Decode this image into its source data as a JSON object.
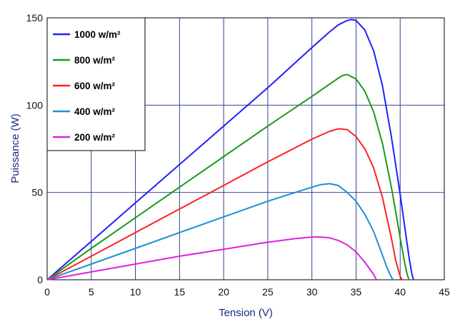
{
  "chart_data": {
    "type": "line",
    "title": "",
    "xlabel": "Tension  (V)",
    "ylabel": "Puissance  (W)",
    "xlim": [
      0,
      45
    ],
    "ylim": [
      0,
      150
    ],
    "xticks": [
      "0",
      "5",
      "10",
      "15",
      "20",
      "25",
      "30",
      "35",
      "40",
      "45"
    ],
    "yticks": [
      "0",
      "50",
      "100",
      "150"
    ],
    "grid": true,
    "legend_position": "top-left",
    "series": [
      {
        "name": "1000  w/m²",
        "color": "#2020ff",
        "x": [
          0,
          5,
          10,
          15,
          20,
          25,
          30,
          32,
          33,
          34,
          34.5,
          35,
          36,
          37,
          38,
          39,
          40,
          40.5,
          41,
          41.3,
          41.5
        ],
        "y": [
          0,
          22,
          44,
          66,
          88,
          110,
          133,
          142,
          146,
          148.5,
          149,
          148.5,
          143,
          131,
          111,
          82,
          49,
          31,
          13,
          4,
          0
        ]
      },
      {
        "name": "800  w/m²",
        "color": "#1a9a1a",
        "x": [
          0,
          5,
          10,
          15,
          20,
          25,
          30,
          32,
          33,
          33.5,
          34,
          35,
          36,
          37,
          38,
          39,
          39.5,
          40,
          40.5,
          40.8,
          41
        ],
        "y": [
          0,
          18,
          35.5,
          53,
          70.5,
          88,
          105,
          112,
          115.5,
          117,
          117.5,
          115,
          108,
          96,
          78,
          53,
          39,
          24,
          10,
          3,
          0
        ]
      },
      {
        "name": "600  w/m²",
        "color": "#ff2020",
        "x": [
          0,
          5,
          10,
          15,
          20,
          25,
          30,
          32,
          33,
          34,
          35,
          36,
          37,
          38,
          39,
          39.5,
          40,
          40.2
        ],
        "y": [
          0,
          13.5,
          27,
          40.5,
          54,
          67.5,
          80.5,
          85,
          86.5,
          86,
          82,
          75,
          64,
          47,
          24,
          11,
          2,
          0
        ]
      },
      {
        "name": "400  w/m²",
        "color": "#1e90d2",
        "x": [
          0,
          5,
          10,
          15,
          20,
          25,
          30,
          31,
          32,
          33,
          34,
          35,
          36,
          37,
          38,
          38.5,
          39,
          39.2
        ],
        "y": [
          0,
          9,
          18,
          27,
          36,
          45,
          53,
          54.5,
          55,
          54,
          50,
          45,
          37.5,
          27.5,
          14,
          7,
          1.5,
          0
        ]
      },
      {
        "name": "200  w/m²",
        "color": "#dd22dd",
        "x": [
          0,
          5,
          10,
          15,
          20,
          25,
          28,
          30,
          31,
          32,
          33,
          34,
          35,
          36,
          36.5,
          37,
          37.3
        ],
        "y": [
          0,
          4.5,
          9,
          13.5,
          17.5,
          21.5,
          23.5,
          24.5,
          24.5,
          24,
          22.5,
          20,
          16,
          10,
          6.5,
          3,
          0
        ]
      }
    ]
  }
}
